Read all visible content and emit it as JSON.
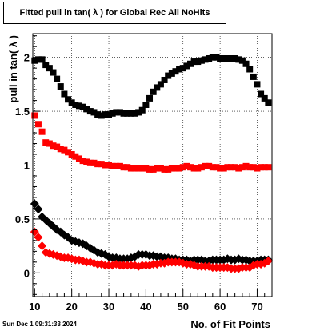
{
  "timestamp": "Sun Dec  1 09:31:33 2024",
  "chart_data": {
    "type": "scatter",
    "title": "Fitted pull in tan( λ ) for Global Rec All NoHits",
    "xlabel": "No. of Fit Points",
    "ylabel": "pull in tan( λ )",
    "xlim": [
      9.5,
      74
    ],
    "ylim": [
      -0.22,
      2.22
    ],
    "xticks": [
      10,
      20,
      30,
      40,
      50,
      60,
      70
    ],
    "yticks": [
      0,
      0.5,
      1,
      1.5,
      2
    ],
    "ytick_labels": [
      "0",
      "0.5",
      "1",
      "1.5",
      "2"
    ],
    "grid": true,
    "legend": "none",
    "series": [
      {
        "color": "#000000",
        "marker": "square",
        "x": [
          10,
          11,
          12,
          13,
          14,
          15,
          16,
          17,
          18,
          19,
          20,
          21,
          22,
          23,
          24,
          25,
          26,
          27,
          28,
          29,
          30,
          31,
          32,
          33,
          34,
          35,
          36,
          37,
          38,
          39,
          40,
          41,
          42,
          43,
          44,
          45,
          46,
          47,
          48,
          49,
          50,
          51,
          52,
          53,
          54,
          55,
          56,
          57,
          58,
          59,
          60,
          61,
          62,
          63,
          64,
          65,
          66,
          67,
          68,
          69,
          70,
          71,
          72,
          73
        ],
        "values": [
          1.97,
          1.98,
          1.98,
          1.93,
          1.9,
          1.86,
          1.8,
          1.73,
          1.66,
          1.61,
          1.58,
          1.56,
          1.55,
          1.54,
          1.52,
          1.5,
          1.49,
          1.47,
          1.46,
          1.47,
          1.47,
          1.48,
          1.49,
          1.49,
          1.48,
          1.48,
          1.48,
          1.48,
          1.49,
          1.51,
          1.56,
          1.62,
          1.68,
          1.72,
          1.75,
          1.79,
          1.83,
          1.85,
          1.87,
          1.89,
          1.9,
          1.92,
          1.94,
          1.96,
          1.96,
          1.97,
          1.98,
          1.99,
          2.0,
          2.0,
          1.99,
          1.99,
          1.99,
          1.99,
          1.99,
          1.98,
          1.97,
          1.94,
          1.89,
          1.82,
          1.75,
          1.66,
          1.62,
          1.58
        ]
      },
      {
        "color": "#ff0000",
        "marker": "square",
        "x": [
          10,
          11,
          12,
          13,
          14,
          15,
          16,
          17,
          18,
          19,
          20,
          21,
          22,
          23,
          24,
          25,
          26,
          27,
          28,
          29,
          30,
          31,
          32,
          33,
          34,
          35,
          36,
          37,
          38,
          39,
          40,
          41,
          42,
          43,
          44,
          45,
          46,
          47,
          48,
          49,
          50,
          51,
          52,
          53,
          54,
          55,
          56,
          57,
          58,
          59,
          60,
          61,
          62,
          63,
          64,
          65,
          66,
          67,
          68,
          69,
          70,
          71,
          72,
          73
        ],
        "values": [
          1.46,
          1.38,
          1.31,
          1.21,
          1.2,
          1.18,
          1.17,
          1.15,
          1.14,
          1.12,
          1.1,
          1.08,
          1.06,
          1.04,
          1.03,
          1.02,
          1.02,
          1.01,
          1.01,
          1.0,
          1.0,
          0.99,
          0.99,
          0.99,
          0.98,
          0.98,
          0.97,
          0.97,
          0.97,
          0.97,
          0.97,
          0.96,
          0.96,
          0.97,
          0.97,
          0.96,
          0.96,
          0.97,
          0.97,
          0.97,
          0.98,
          0.99,
          0.98,
          0.97,
          0.97,
          0.98,
          0.99,
          0.99,
          0.98,
          0.98,
          0.97,
          0.97,
          0.98,
          0.98,
          0.98,
          0.97,
          0.98,
          0.99,
          0.98,
          0.98,
          0.97,
          0.98,
          0.98,
          0.98
        ]
      },
      {
        "color": "#000000",
        "marker": "diamond",
        "x": [
          10,
          11,
          12,
          13,
          14,
          15,
          16,
          17,
          18,
          19,
          20,
          21,
          22,
          23,
          24,
          25,
          26,
          27,
          28,
          29,
          30,
          31,
          32,
          33,
          34,
          35,
          36,
          37,
          38,
          39,
          40,
          41,
          42,
          43,
          44,
          45,
          46,
          47,
          48,
          49,
          50,
          51,
          52,
          53,
          54,
          55,
          56,
          57,
          58,
          59,
          60,
          61,
          62,
          63,
          64,
          65,
          66,
          67,
          68,
          69,
          70,
          71,
          72,
          73
        ],
        "values": [
          0.64,
          0.59,
          0.52,
          0.49,
          0.46,
          0.43,
          0.4,
          0.38,
          0.35,
          0.33,
          0.3,
          0.29,
          0.28,
          0.27,
          0.25,
          0.23,
          0.21,
          0.19,
          0.18,
          0.17,
          0.15,
          0.14,
          0.14,
          0.13,
          0.13,
          0.13,
          0.14,
          0.15,
          0.17,
          0.17,
          0.17,
          0.16,
          0.16,
          0.15,
          0.15,
          0.14,
          0.14,
          0.13,
          0.13,
          0.12,
          0.12,
          0.12,
          0.11,
          0.12,
          0.12,
          0.12,
          0.11,
          0.11,
          0.12,
          0.12,
          0.12,
          0.12,
          0.13,
          0.12,
          0.12,
          0.13,
          0.12,
          0.12,
          0.11,
          0.11,
          0.11,
          0.12,
          0.12,
          0.12
        ]
      },
      {
        "color": "#ff0000",
        "marker": "diamond",
        "x": [
          10,
          11,
          12,
          13,
          14,
          15,
          16,
          17,
          18,
          19,
          20,
          21,
          22,
          23,
          24,
          25,
          26,
          27,
          28,
          29,
          30,
          31,
          32,
          33,
          34,
          35,
          36,
          37,
          38,
          39,
          40,
          41,
          42,
          43,
          44,
          45,
          46,
          47,
          48,
          49,
          50,
          51,
          52,
          53,
          54,
          55,
          56,
          57,
          58,
          59,
          60,
          61,
          62,
          63,
          64,
          65,
          66,
          67,
          68,
          69,
          70,
          71,
          72,
          73
        ],
        "values": [
          0.38,
          0.33,
          0.25,
          0.19,
          0.18,
          0.17,
          0.16,
          0.15,
          0.14,
          0.14,
          0.13,
          0.12,
          0.12,
          0.11,
          0.1,
          0.1,
          0.09,
          0.08,
          0.08,
          0.07,
          0.07,
          0.07,
          0.08,
          0.07,
          0.07,
          0.07,
          0.07,
          0.07,
          0.06,
          0.07,
          0.07,
          0.07,
          0.08,
          0.08,
          0.09,
          0.09,
          0.1,
          0.1,
          0.1,
          0.1,
          0.09,
          0.08,
          0.08,
          0.07,
          0.06,
          0.06,
          0.06,
          0.06,
          0.05,
          0.05,
          0.05,
          0.05,
          0.05,
          0.04,
          0.04,
          0.04,
          0.05,
          0.05,
          0.05,
          0.07,
          0.08,
          0.08,
          0.09,
          0.11
        ]
      }
    ]
  }
}
